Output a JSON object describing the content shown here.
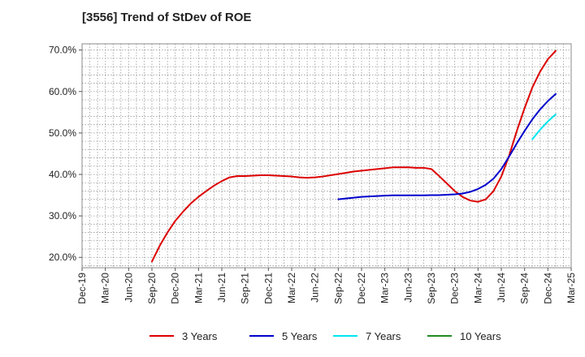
{
  "chart_data": {
    "type": "line",
    "title": "[3556]  Trend of StDev of ROE",
    "xlabel": "",
    "ylabel": "",
    "x_tick_labels": [
      "Dec-19",
      "Mar-20",
      "Jun-20",
      "Sep-20",
      "Dec-20",
      "Mar-21",
      "Jun-21",
      "Sep-21",
      "Dec-21",
      "Mar-22",
      "Jun-22",
      "Sep-22",
      "Dec-22",
      "Mar-23",
      "Jun-23",
      "Sep-23",
      "Dec-23",
      "Mar-24",
      "Jun-24",
      "Sep-24",
      "Dec-24",
      "Mar-25"
    ],
    "y_tick_labels": [
      "20.0%",
      "30.0%",
      "40.0%",
      "50.0%",
      "60.0%",
      "70.0%"
    ],
    "ylim": [
      17.5,
      71.5
    ],
    "xlim": [
      0,
      63
    ],
    "grid": true,
    "legend_position": "bottom",
    "series": [
      {
        "name": "3 Years",
        "color": "#dd0000",
        "points": [
          [
            9,
            19.0
          ],
          [
            10,
            22.8
          ],
          [
            11,
            26.0
          ],
          [
            12,
            28.8
          ],
          [
            13,
            31.0
          ],
          [
            14,
            33.0
          ],
          [
            15,
            34.6
          ],
          [
            16,
            36.0
          ],
          [
            17,
            37.3
          ],
          [
            18,
            38.4
          ],
          [
            19,
            39.3
          ],
          [
            20,
            39.6
          ],
          [
            21,
            39.6
          ],
          [
            22,
            39.7
          ],
          [
            23,
            39.8
          ],
          [
            24,
            39.8
          ],
          [
            25,
            39.7
          ],
          [
            26,
            39.6
          ],
          [
            27,
            39.5
          ],
          [
            28,
            39.3
          ],
          [
            29,
            39.2
          ],
          [
            30,
            39.3
          ],
          [
            31,
            39.5
          ],
          [
            32,
            39.8
          ],
          [
            33,
            40.1
          ],
          [
            34,
            40.4
          ],
          [
            35,
            40.7
          ],
          [
            36,
            40.9
          ],
          [
            37,
            41.1
          ],
          [
            38,
            41.3
          ],
          [
            39,
            41.5
          ],
          [
            40,
            41.7
          ],
          [
            41,
            41.7
          ],
          [
            42,
            41.7
          ],
          [
            43,
            41.6
          ],
          [
            44,
            41.6
          ],
          [
            45,
            41.3
          ],
          [
            46,
            39.6
          ],
          [
            47,
            37.8
          ],
          [
            48,
            36.0
          ],
          [
            49,
            34.6
          ],
          [
            50,
            33.7
          ],
          [
            51,
            33.4
          ],
          [
            52,
            34.0
          ],
          [
            53,
            36.0
          ],
          [
            54,
            39.5
          ],
          [
            55,
            44.5
          ],
          [
            56,
            50.5
          ],
          [
            57,
            56.0
          ],
          [
            58,
            61.0
          ],
          [
            59,
            64.8
          ],
          [
            60,
            67.8
          ],
          [
            61,
            69.8
          ]
        ]
      },
      {
        "name": "5 Years",
        "color": "#0000cc",
        "points": [
          [
            33,
            34.0
          ],
          [
            34,
            34.2
          ],
          [
            35,
            34.4
          ],
          [
            36,
            34.6
          ],
          [
            37,
            34.7
          ],
          [
            38,
            34.8
          ],
          [
            39,
            34.9
          ],
          [
            40,
            34.95
          ],
          [
            41,
            34.95
          ],
          [
            42,
            34.95
          ],
          [
            43,
            34.95
          ],
          [
            44,
            34.95
          ],
          [
            45,
            35.0
          ],
          [
            46,
            35.0
          ],
          [
            47,
            35.1
          ],
          [
            48,
            35.2
          ],
          [
            49,
            35.4
          ],
          [
            50,
            35.8
          ],
          [
            51,
            36.5
          ],
          [
            52,
            37.5
          ],
          [
            53,
            39.0
          ],
          [
            54,
            41.3
          ],
          [
            55,
            44.3
          ],
          [
            56,
            47.5
          ],
          [
            57,
            50.5
          ],
          [
            58,
            53.3
          ],
          [
            59,
            55.7
          ],
          [
            60,
            57.7
          ],
          [
            61,
            59.4
          ]
        ]
      },
      {
        "name": "7 Years",
        "color": "#00e5ee",
        "points": [
          [
            58,
            48.5
          ],
          [
            59,
            50.8
          ],
          [
            60,
            52.8
          ],
          [
            61,
            54.5
          ]
        ]
      },
      {
        "name": "10 Years",
        "color": "#228b22",
        "points": []
      }
    ]
  }
}
